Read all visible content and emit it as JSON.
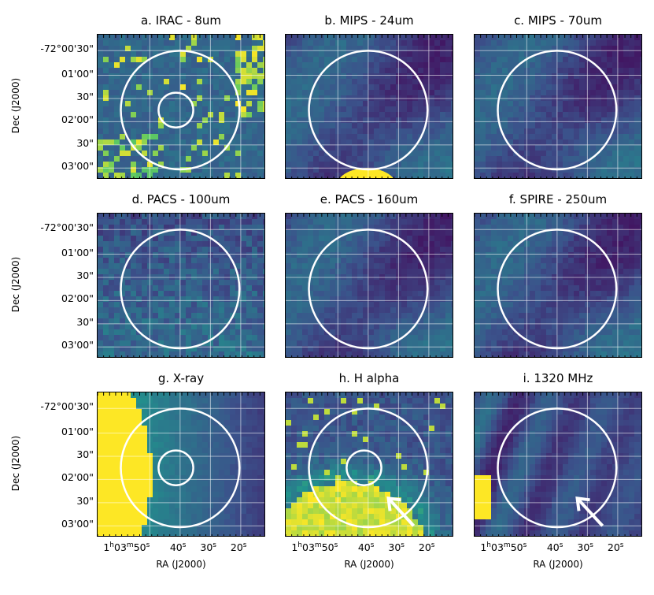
{
  "figure": {
    "panels": [
      {
        "id": "a",
        "title": "a. IRAC - 8um",
        "style": "noisy",
        "inner_circle": true,
        "arrow": false,
        "blob": "none"
      },
      {
        "id": "b",
        "title": "b. MIPS - 24um",
        "style": "smooth",
        "inner_circle": false,
        "arrow": false,
        "blob": "bottom"
      },
      {
        "id": "c",
        "title": "c. MIPS - 70um",
        "style": "smooth",
        "inner_circle": false,
        "arrow": false,
        "blob": "none"
      },
      {
        "id": "d",
        "title": "d. PACS - 100um",
        "style": "noisy-dim",
        "inner_circle": false,
        "arrow": false,
        "blob": "none"
      },
      {
        "id": "e",
        "title": "e. PACS - 160um",
        "style": "smooth",
        "inner_circle": false,
        "arrow": false,
        "blob": "none"
      },
      {
        "id": "f",
        "title": "f. SPIRE - 250um",
        "style": "smooth",
        "inner_circle": false,
        "arrow": false,
        "blob": "none"
      },
      {
        "id": "g",
        "title": "g. X-ray",
        "style": "xray",
        "inner_circle": true,
        "arrow": false,
        "blob": "left"
      },
      {
        "id": "h",
        "title": "h. H alpha",
        "style": "halpha",
        "inner_circle": true,
        "arrow": true,
        "blob": "bottom-left"
      },
      {
        "id": "i",
        "title": "i. 1320 MHz",
        "style": "radio",
        "inner_circle": false,
        "arrow": true,
        "blob": "left-edge"
      }
    ],
    "y_axis": {
      "label": "Dec (J2000)",
      "ticks": [
        "-72°00'30\"",
        "01'00\"",
        "30\"",
        "02'00\"",
        "30\"",
        "03'00\""
      ]
    },
    "x_axis": {
      "label": "RA (J2000)",
      "ticks": [
        {
          "h": "1",
          "hu": "h",
          "m": "03",
          "mu": "m",
          "s": "50",
          "su": "s"
        },
        {
          "s": "40",
          "su": "s"
        },
        {
          "s": "30",
          "su": "s"
        },
        {
          "s": "20",
          "su": "s"
        }
      ]
    },
    "colors": {
      "low": "#440154",
      "mid": "#21918c",
      "high": "#fde725",
      "circle": "#ffffff",
      "grid": "#ffffff"
    }
  }
}
